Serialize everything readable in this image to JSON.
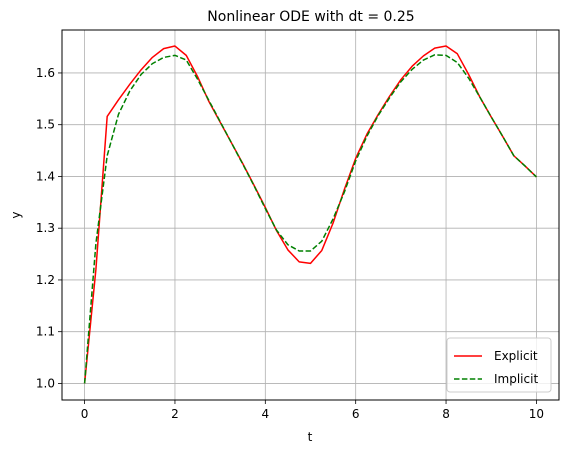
{
  "chart_data": {
    "type": "line",
    "title": "Nonlinear ODE with dt = 0.25",
    "xlabel": "t",
    "ylabel": "y",
    "xlim": [
      -0.5,
      10.5
    ],
    "ylim": [
      0.968,
      1.683
    ],
    "xticks": [
      0,
      2,
      4,
      6,
      8,
      10
    ],
    "yticks": [
      1.0,
      1.1,
      1.2,
      1.3,
      1.4,
      1.5,
      1.6
    ],
    "grid": true,
    "legend": "lower-right",
    "series": [
      {
        "name": "Explicit",
        "color": "#ff0000",
        "dash": "solid",
        "x": [
          0,
          0.25,
          0.5,
          0.75,
          1.0,
          1.25,
          1.5,
          1.75,
          2.0,
          2.25,
          2.5,
          2.75,
          3.0,
          3.25,
          3.5,
          3.75,
          4.0,
          4.25,
          4.5,
          4.75,
          5.0,
          5.25,
          5.5,
          5.75,
          6.0,
          6.25,
          6.5,
          6.75,
          7.0,
          7.25,
          7.5,
          7.75,
          8.0,
          8.25,
          8.5,
          8.75,
          9.0,
          9.25,
          9.5,
          9.75,
          10.0
        ],
        "y": [
          1.0,
          1.22,
          1.516,
          1.548,
          1.578,
          1.606,
          1.63,
          1.647,
          1.652,
          1.634,
          1.593,
          1.545,
          1.505,
          1.465,
          1.425,
          1.383,
          1.34,
          1.295,
          1.258,
          1.235,
          1.232,
          1.257,
          1.31,
          1.375,
          1.435,
          1.482,
          1.52,
          1.555,
          1.587,
          1.613,
          1.633,
          1.648,
          1.652,
          1.637,
          1.597,
          1.553,
          1.515,
          1.478,
          1.44,
          1.42,
          1.399
        ]
      },
      {
        "name": "Implicit",
        "color": "#008000",
        "dash": "dashed",
        "x": [
          0,
          0.25,
          0.5,
          0.75,
          1.0,
          1.25,
          1.5,
          1.75,
          2.0,
          2.25,
          2.5,
          2.75,
          3.0,
          3.25,
          3.5,
          3.75,
          4.0,
          4.25,
          4.5,
          4.75,
          5.0,
          5.25,
          5.5,
          5.75,
          6.0,
          6.25,
          6.5,
          6.75,
          7.0,
          7.25,
          7.5,
          7.75,
          8.0,
          8.25,
          8.5,
          8.75,
          9.0,
          9.25,
          9.5,
          9.75,
          10.0
        ],
        "y": [
          1.0,
          1.27,
          1.44,
          1.52,
          1.565,
          1.597,
          1.618,
          1.63,
          1.634,
          1.625,
          1.588,
          1.547,
          1.506,
          1.465,
          1.424,
          1.382,
          1.338,
          1.296,
          1.268,
          1.256,
          1.256,
          1.275,
          1.318,
          1.37,
          1.43,
          1.478,
          1.518,
          1.552,
          1.583,
          1.607,
          1.625,
          1.635,
          1.634,
          1.62,
          1.59,
          1.553,
          1.515,
          1.478,
          1.44,
          1.42,
          1.399
        ]
      }
    ]
  }
}
